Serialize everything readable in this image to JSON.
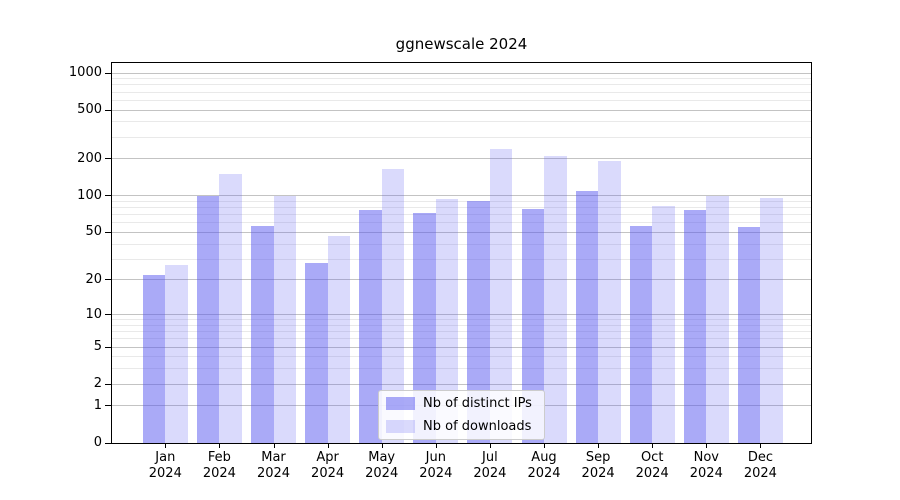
{
  "chart_data": {
    "type": "bar",
    "title": "ggnewscale 2024",
    "categories": [
      "Jan 2024",
      "Feb 2024",
      "Mar 2024",
      "Apr 2024",
      "May 2024",
      "Jun 2024",
      "Jul 2024",
      "Aug 2024",
      "Sep 2024",
      "Oct 2024",
      "Nov 2024",
      "Dec 2024"
    ],
    "x_tick_line1": [
      "Jan",
      "Feb",
      "Mar",
      "Apr",
      "May",
      "Jun",
      "Jul",
      "Aug",
      "Sep",
      "Oct",
      "Nov",
      "Dec"
    ],
    "x_tick_line2": [
      "2024",
      "2024",
      "2024",
      "2024",
      "2024",
      "2024",
      "2024",
      "2024",
      "2024",
      "2024",
      "2024",
      "2024"
    ],
    "series": [
      {
        "name": "Nb of distinct IPs",
        "color": "#5555f0",
        "opacity": 0.5,
        "apparent_color": "#aaaaf7",
        "values": [
          22,
          100,
          57,
          28,
          77,
          72,
          91,
          78,
          110,
          57,
          76,
          55
        ]
      },
      {
        "name": "Nb of downloads",
        "color": "#5555f0",
        "opacity": 0.22,
        "apparent_color": "#dadafb",
        "values": [
          27,
          150,
          100,
          47,
          165,
          94,
          240,
          212,
          192,
          83,
          100,
          96
        ]
      }
    ],
    "y_scale": "log1p",
    "y_ticks": [
      0,
      1,
      2,
      5,
      10,
      20,
      50,
      100,
      200,
      500,
      1000
    ],
    "y_minor_gridlines": [
      3,
      4,
      6,
      7,
      8,
      9,
      30,
      40,
      60,
      70,
      80,
      90,
      300,
      400,
      600,
      700,
      800,
      900
    ],
    "ylim_top_value": 1000,
    "grid_major_color": "#c3c3c3",
    "grid_minor_color": "#e9e9e9",
    "legend_position": "inside-bottom-center",
    "xlabel": "",
    "ylabel": ""
  }
}
